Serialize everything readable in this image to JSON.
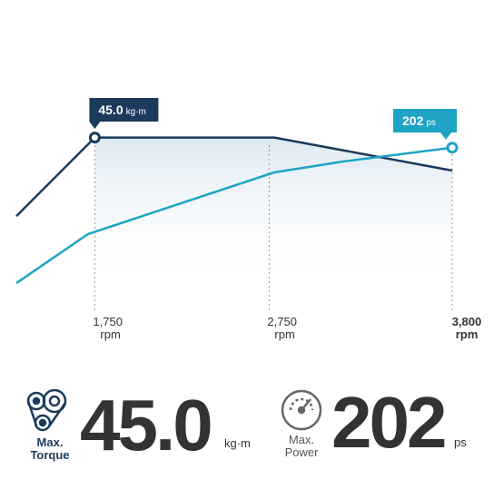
{
  "chart_data": {
    "type": "line",
    "x_unit": "rpm",
    "xlim": [
      1300,
      3800
    ],
    "xticks": [
      {
        "value": 1750,
        "label": "1,750"
      },
      {
        "value": 2750,
        "label": "2,750"
      },
      {
        "value": 3800,
        "label": "3,800"
      }
    ],
    "ylim": [
      0,
      50
    ],
    "y2lim": [
      0,
      235
    ],
    "series": [
      {
        "color": "#1b3a5c",
        "x": [
          1300,
          1750,
          2780,
          3800
        ],
        "values": [
          29.3,
          45.0,
          45.0,
          38.4
        ]
      },
      {
        "color": "#1ea3c4",
        "axis": "y2",
        "x": [
          1300,
          1711,
          2779,
          3175,
          3800
        ],
        "values": [
          74.9,
          120.9,
          178.8,
          189.0,
          202
        ]
      }
    ],
    "annotations": [
      {
        "text": "45.0",
        "unit": "kg·m"
      },
      {
        "text": "202",
        "unit": "ps"
      }
    ]
  },
  "stats": [
    {
      "label": [
        "Max.",
        "Torque"
      ],
      "value": "45.0",
      "unit": "kg·m"
    },
    {
      "label": [
        "Max.",
        "Power"
      ],
      "value": "202",
      "unit": "ps"
    }
  ]
}
